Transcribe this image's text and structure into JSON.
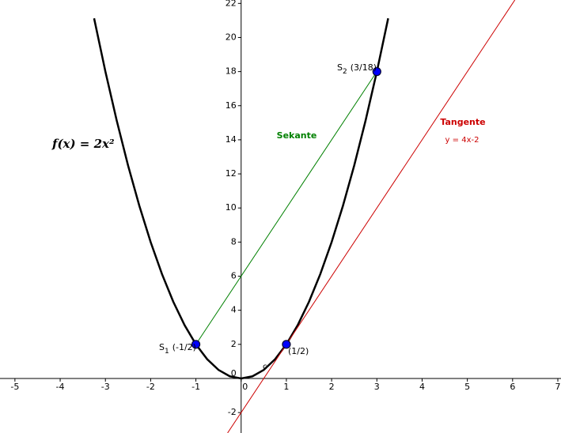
{
  "chart_data": {
    "type": "line",
    "xlim": [
      -5.33,
      7.07
    ],
    "ylim": [
      -3.2,
      22.2
    ],
    "xticks": [
      -5,
      -4,
      -3,
      -2,
      -1,
      0,
      1,
      2,
      3,
      4,
      5,
      6,
      7
    ],
    "yticks": [
      -2,
      0,
      2,
      4,
      6,
      8,
      10,
      12,
      14,
      16,
      18,
      20,
      22
    ],
    "series": [
      {
        "name": "f(x) = 2x²",
        "color": "#000000",
        "x": [
          -3.25,
          -3,
          -2.75,
          -2.5,
          -2.25,
          -2,
          -1.75,
          -1.5,
          -1.25,
          -1,
          -0.75,
          -0.5,
          -0.25,
          0,
          0.25,
          0.5,
          0.75,
          1,
          1.25,
          1.5,
          1.75,
          2,
          2.25,
          2.5,
          2.75,
          3,
          3.25
        ],
        "values": [
          21.125,
          18,
          15.125,
          12.5,
          10.125,
          8,
          6.125,
          4.5,
          3.125,
          2,
          1.125,
          0.5,
          0.125,
          0,
          0.125,
          0.5,
          1.125,
          2,
          3.125,
          4.5,
          6.125,
          8,
          10.125,
          12.5,
          15.125,
          18,
          21.125
        ]
      },
      {
        "name": "Sekante",
        "color": "#008000",
        "x": [
          -1,
          3
        ],
        "values": [
          2,
          18
        ]
      },
      {
        "name": "Tangente",
        "color": "#cc0000",
        "equation": "y = 4x-2",
        "label": "c",
        "x": [
          -0.3,
          6.05
        ],
        "values": [
          -3.2,
          22.2
        ]
      }
    ],
    "points": {
      "color": "#0000ff",
      "x": [
        -1,
        3,
        1
      ],
      "values": [
        2,
        18,
        2
      ],
      "labels": [
        {
          "name": "S",
          "sub": "1",
          "coords": "(-1/2)"
        },
        {
          "name": "S",
          "sub": "2",
          "coords": "(3/18)"
        },
        {
          "coords": "(1/2)"
        }
      ]
    }
  }
}
